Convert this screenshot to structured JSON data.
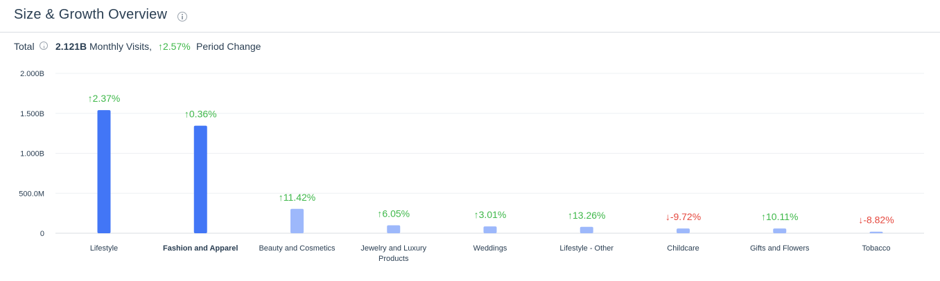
{
  "header": {
    "title": "Size & Growth Overview",
    "info_icon": "info-icon"
  },
  "summary": {
    "total_label": "Total",
    "value": "2.121B",
    "visits_label": "Monthly Visits,",
    "change": "↑2.57%",
    "change_label": "Period Change"
  },
  "colors": {
    "bar_selected": "#4276f6",
    "bar_default": "#9db8fb",
    "positive": "#3fb84a",
    "negative": "#e5473d",
    "grid": "#eef0f3"
  },
  "chart_data": {
    "type": "bar",
    "categories": [
      "Lifestyle",
      "Fashion and Apparel",
      "Beauty and Cosmetics",
      "Jewelry and Luxury Products",
      "Weddings",
      "Lifestyle - Other",
      "Childcare",
      "Gifts and Flowers",
      "Tobacco"
    ],
    "category_lines": [
      [
        "Lifestyle"
      ],
      [
        "Fashion and Apparel"
      ],
      [
        "Beauty and Cosmetics"
      ],
      [
        "Jewelry and Luxury",
        "Products"
      ],
      [
        "Weddings"
      ],
      [
        "Lifestyle - Other"
      ],
      [
        "Childcare"
      ],
      [
        "Gifts and Flowers"
      ],
      [
        "Tobacco"
      ]
    ],
    "values": [
      1540000000,
      1345000000,
      305000000,
      100000000,
      85000000,
      80000000,
      60000000,
      60000000,
      20000000
    ],
    "growth_labels": [
      "↑2.37%",
      "↑0.36%",
      "↑11.42%",
      "↑6.05%",
      "↑3.01%",
      "↑13.26%",
      "↓-9.72%",
      "↑10.11%",
      "↓-8.82%"
    ],
    "growth_values": [
      2.37,
      0.36,
      11.42,
      6.05,
      3.01,
      13.26,
      -9.72,
      10.11,
      -8.82
    ],
    "highlighted": [
      true,
      true,
      false,
      false,
      false,
      false,
      false,
      false,
      false
    ],
    "ylim": [
      0,
      2000000000
    ],
    "yticks": [
      0,
      500000000,
      1000000000,
      1500000000,
      2000000000
    ],
    "ytick_labels": [
      "0",
      "500.0M",
      "1.000B",
      "1.500B",
      "2.000B"
    ],
    "grid": true,
    "legend": "none"
  }
}
